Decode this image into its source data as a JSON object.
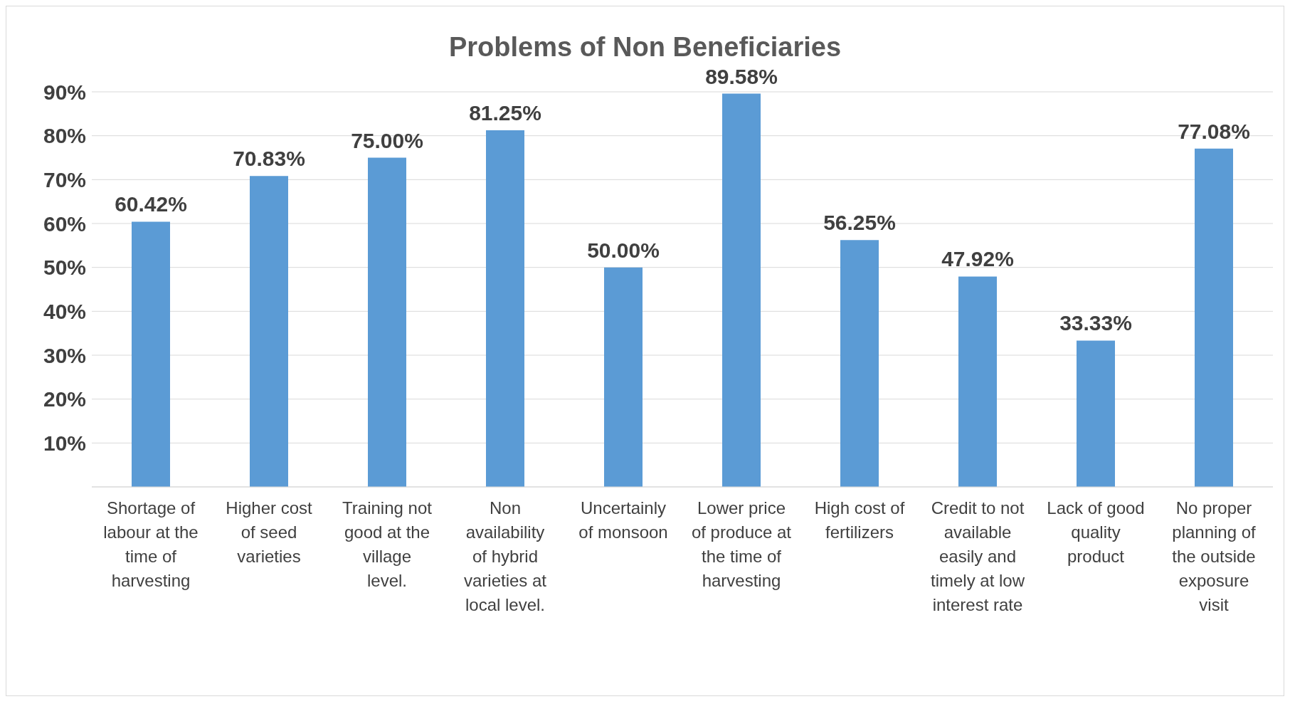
{
  "chart_data": {
    "type": "bar",
    "title": "Problems of Non Beneficiaries",
    "categories": [
      "Shortage of labour at the time of harvesting",
      "Higher cost of seed varieties",
      "Training not good at the village level.",
      "Non availability of hybrid varieties at local level.",
      "Uncertainly of monsoon",
      "Lower price of produce at the time of harvesting",
      "High cost of fertilizers",
      "Credit to not available easily and timely at low interest rate",
      "Lack of good quality product",
      "No proper planning of the outside exposure visit"
    ],
    "values": [
      60.42,
      70.83,
      75.0,
      81.25,
      50.0,
      89.58,
      56.25,
      47.92,
      33.33,
      77.08
    ],
    "value_labels": [
      "60.42%",
      "70.83%",
      "75.00%",
      "81.25%",
      "50.00%",
      "89.58%",
      "56.25%",
      "47.92%",
      "33.33%",
      "77.08%"
    ],
    "color": "#5b9bd5",
    "ylim": [
      0,
      90
    ],
    "yticks": [
      {
        "value": 0,
        "label": null
      },
      {
        "value": 10,
        "label": "10%"
      },
      {
        "value": 20,
        "label": "20%"
      },
      {
        "value": 30,
        "label": "30%"
      },
      {
        "value": 40,
        "label": "40%"
      },
      {
        "value": 50,
        "label": "50%"
      },
      {
        "value": 60,
        "label": "60%"
      },
      {
        "value": 70,
        "label": "70%"
      },
      {
        "value": 80,
        "label": "80%"
      },
      {
        "value": 90,
        "label": "90%"
      }
    ],
    "grid": "y"
  }
}
